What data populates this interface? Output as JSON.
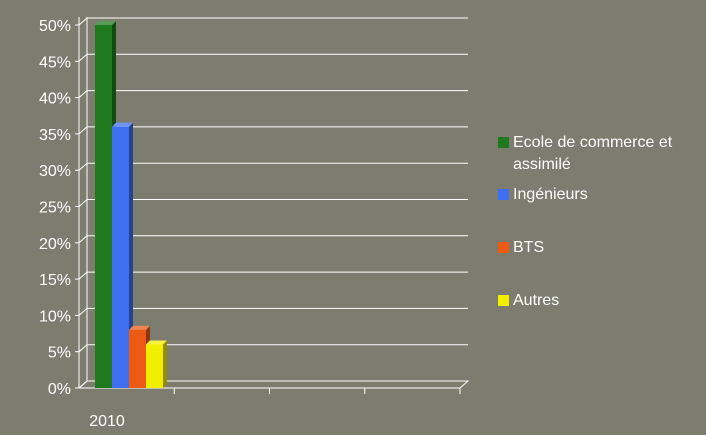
{
  "chart_data": {
    "type": "bar",
    "categories": [
      "2010"
    ],
    "series": [
      {
        "name": "Ecole de commerce et assimilé",
        "values": [
          50
        ],
        "color": "#1f7a1f"
      },
      {
        "name": "Ingénieurs",
        "values": [
          36
        ],
        "color": "#3d6ff0"
      },
      {
        "name": "BTS",
        "values": [
          8
        ],
        "color": "#ec5a14"
      },
      {
        "name": "Autres",
        "values": [
          6
        ],
        "color": "#f2ee00"
      }
    ],
    "y_ticks": [
      "0%",
      "5%",
      "10%",
      "15%",
      "20%",
      "25%",
      "30%",
      "35%",
      "40%",
      "45%",
      "50%"
    ],
    "ylim": [
      0,
      50
    ],
    "grid": true,
    "legend_position": "right",
    "style": "3d"
  }
}
